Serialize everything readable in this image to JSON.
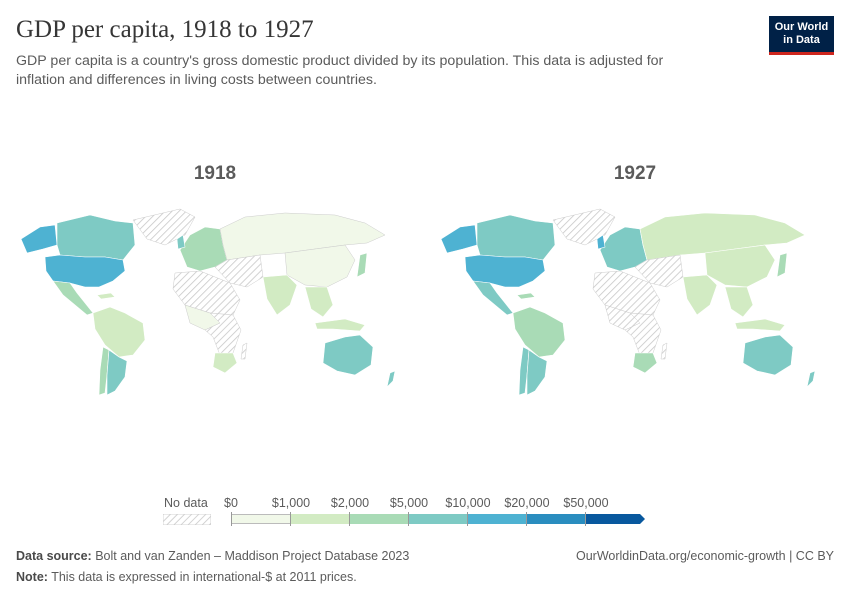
{
  "header": {
    "title": "GDP per capita, 1918 to 1927",
    "subtitle": "GDP per capita is a country's gross domestic product divided by its population. This data is adjusted for inflation and differences in living costs between countries."
  },
  "logo": {
    "line1": "Our World",
    "line2": "in Data"
  },
  "panels": [
    {
      "year": "1918"
    },
    {
      "year": "1927"
    }
  ],
  "legend": {
    "no_data_label": "No data",
    "bin_labels": [
      "$0",
      "$1,000",
      "$2,000",
      "$5,000",
      "$10,000",
      "$20,000",
      "$50,000"
    ],
    "colors": [
      "#f1f8e9",
      "#d2ebc3",
      "#a9dbb6",
      "#7ecac4",
      "#4eb2d2",
      "#2a8dbf",
      "#08589e"
    ],
    "no_data_color": "#e6e6e6"
  },
  "footer": {
    "source_label": "Data source:",
    "source_text": "Bolt and van Zanden – Maddison Project Database 2023",
    "note_label": "Note:",
    "note_text": "This data is expressed in international-$ at 2011 prices.",
    "url": "OurWorldinData.org/economic-growth",
    "license": "CC BY"
  }
}
